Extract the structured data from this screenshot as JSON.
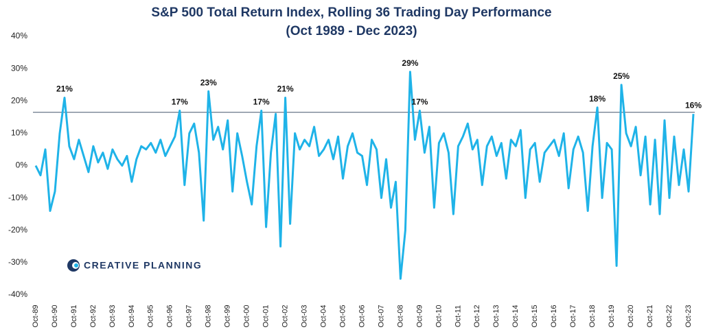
{
  "chart_data": {
    "type": "line",
    "title": "S&P 500 Total Return Index, Rolling 36 Trading Day Performance",
    "subtitle": "(Oct 1989 - Dec 2023)",
    "watermark": "CREATIVE PLANNING",
    "categories": [
      "Oct-89",
      null,
      null,
      null,
      "Oct-90",
      null,
      null,
      null,
      "Oct-91",
      null,
      null,
      null,
      "Oct-92",
      null,
      null,
      null,
      "Oct-93",
      null,
      null,
      null,
      "Oct-94",
      null,
      null,
      null,
      "Oct-95",
      null,
      null,
      null,
      "Oct-96",
      null,
      null,
      null,
      "Oct-97",
      null,
      null,
      null,
      "Oct-98",
      null,
      null,
      null,
      "Oct-99",
      null,
      null,
      null,
      "Oct-00",
      null,
      null,
      null,
      "Oct-01",
      null,
      null,
      null,
      "Oct-02",
      null,
      null,
      null,
      "Oct-03",
      null,
      null,
      null,
      "Oct-04",
      null,
      null,
      null,
      "Oct-05",
      null,
      null,
      null,
      "Oct-06",
      null,
      null,
      null,
      "Oct-07",
      null,
      null,
      null,
      "Oct-08",
      null,
      null,
      null,
      "Oct-09",
      null,
      null,
      null,
      "Oct-10",
      null,
      null,
      null,
      "Oct-11",
      null,
      null,
      null,
      "Oct-12",
      null,
      null,
      null,
      "Oct-13",
      null,
      null,
      null,
      "Oct-14",
      null,
      null,
      null,
      "Oct-15",
      null,
      null,
      null,
      "Oct-16",
      null,
      null,
      null,
      "Oct-17",
      null,
      null,
      null,
      "Oct-18",
      null,
      null,
      null,
      "Oct-19",
      null,
      null,
      null,
      "Oct-20",
      null,
      null,
      null,
      "Oct-21",
      null,
      null,
      null,
      "Oct-22",
      null,
      null,
      null,
      "Oct-23",
      null
    ],
    "series": [
      {
        "name": "S&P 500 Total Return Index",
        "color": "#1fb3e8",
        "values": [
          0,
          -3,
          5,
          -14,
          -8,
          10,
          21,
          6,
          2,
          8,
          3,
          -2,
          6,
          1,
          4,
          -1,
          5,
          2,
          0,
          3,
          -5,
          2,
          6,
          5,
          7,
          4,
          8,
          3,
          6,
          9,
          17,
          -6,
          10,
          13,
          4,
          -17,
          23,
          8,
          12,
          5,
          14,
          -8,
          10,
          3,
          -5,
          -12,
          6,
          17,
          -19,
          4,
          16,
          -25,
          21,
          -18,
          10,
          5,
          8,
          6,
          12,
          3,
          5,
          8,
          2,
          9,
          -4,
          6,
          10,
          4,
          3,
          -6,
          8,
          5,
          -10,
          2,
          -13,
          -5,
          -35,
          -20,
          29,
          8,
          17,
          4,
          12,
          -13,
          7,
          10,
          4,
          -15,
          6,
          9,
          13,
          5,
          8,
          -6,
          6,
          9,
          3,
          7,
          -4,
          8,
          6,
          11,
          -10,
          5,
          7,
          -5,
          4,
          6,
          8,
          3,
          10,
          -7,
          5,
          9,
          4,
          -14,
          6,
          18,
          -10,
          7,
          5,
          -31,
          25,
          10,
          6,
          12,
          -3,
          9,
          -12,
          8,
          -15,
          14,
          -10,
          9,
          -6,
          5,
          -8,
          16
        ],
        "value_labels": [
          null,
          null,
          null,
          null,
          null,
          null,
          "21%",
          null,
          null,
          null,
          null,
          null,
          null,
          null,
          null,
          null,
          null,
          null,
          null,
          null,
          null,
          null,
          null,
          null,
          null,
          null,
          null,
          null,
          null,
          null,
          "17%",
          null,
          null,
          null,
          null,
          null,
          "23%",
          null,
          null,
          null,
          null,
          null,
          null,
          null,
          null,
          null,
          null,
          "17%",
          null,
          null,
          null,
          null,
          "21%",
          null,
          null,
          null,
          null,
          null,
          null,
          null,
          null,
          null,
          null,
          null,
          null,
          null,
          null,
          null,
          null,
          null,
          null,
          null,
          null,
          null,
          null,
          null,
          null,
          null,
          "29%",
          null,
          "17%",
          null,
          null,
          null,
          null,
          null,
          null,
          null,
          null,
          null,
          null,
          null,
          null,
          null,
          null,
          null,
          null,
          null,
          null,
          null,
          null,
          null,
          null,
          null,
          null,
          null,
          null,
          null,
          null,
          null,
          null,
          null,
          null,
          null,
          null,
          null,
          null,
          "18%",
          null,
          null,
          null,
          null,
          "25%",
          null,
          null,
          null,
          null,
          null,
          null,
          null,
          null,
          null,
          null,
          null,
          null,
          null,
          null,
          "16%"
        ]
      }
    ],
    "hline": 16.5,
    "ylim": [
      -40,
      40
    ],
    "yticks": [
      {
        "value": -40,
        "label": "-40%"
      },
      {
        "value": -30,
        "label": "-30%"
      },
      {
        "value": -20,
        "label": "-20%"
      },
      {
        "value": -10,
        "label": "-10%"
      },
      {
        "value": 0,
        "label": "0%"
      },
      {
        "value": 10,
        "label": "10%"
      },
      {
        "value": 20,
        "label": "20%"
      },
      {
        "value": 30,
        "label": "30%"
      },
      {
        "value": 40,
        "label": "40%"
      }
    ],
    "grid": false
  }
}
